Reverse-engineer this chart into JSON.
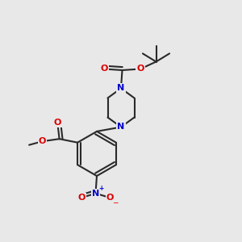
{
  "bg_color": "#e8e8e8",
  "bond_color": "#2a2a2a",
  "oxygen_color": "#dd0000",
  "nitrogen_color": "#0000cc",
  "lw": 1.5,
  "figsize": [
    3.0,
    3.0
  ],
  "dpi": 100,
  "xlim": [
    0.0,
    1.0
  ],
  "ylim": [
    0.0,
    1.0
  ]
}
